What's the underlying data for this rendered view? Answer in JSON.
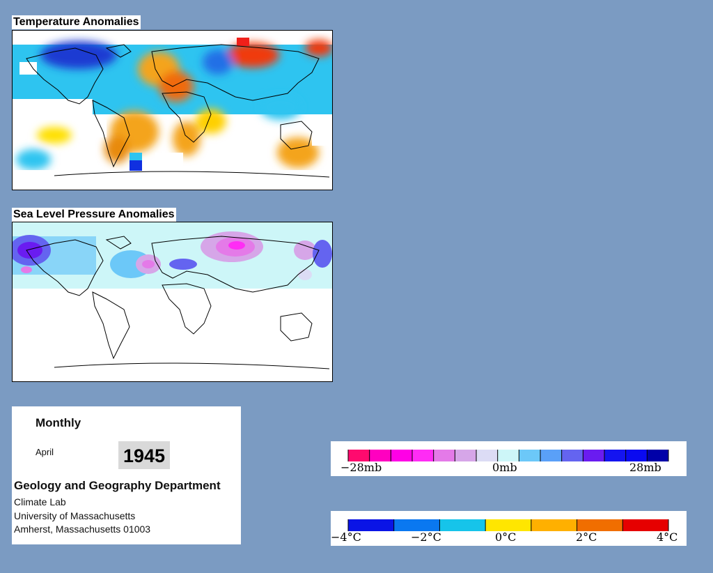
{
  "panels": {
    "temperature": {
      "title": "Temperature Anomalies"
    },
    "pressure": {
      "title": "Sea Level Pressure Anomalies"
    }
  },
  "info": {
    "period": "Monthly",
    "month": "April",
    "year": "1945",
    "department": "Geology and Geography Department",
    "lab": "Climate Lab",
    "university": "University of Massachusetts",
    "address": "Amherst, Massachusetts 01003"
  },
  "legends": {
    "pressure": {
      "labels": [
        "−28mb",
        "0mb",
        "28mb"
      ],
      "colors": [
        "#ff0a6e",
        "#ff00c0",
        "#ff00e6",
        "#ff2cf5",
        "#e47ae8",
        "#d6a6e8",
        "#dcdcf5",
        "#cdf6f8",
        "#6cc8f8",
        "#5aa0f8",
        "#6464f0",
        "#6a1cf0",
        "#1414f0",
        "#0a0af0",
        "#0000a8"
      ]
    },
    "temperature": {
      "labels": [
        "−4°C",
        "−2°C",
        "0°C",
        "2°C",
        "4°C"
      ],
      "colors": [
        "#0a14e6",
        "#0a78f0",
        "#16c4ea",
        "#ffe600",
        "#ffb000",
        "#f06e00",
        "#e60000"
      ]
    }
  }
}
